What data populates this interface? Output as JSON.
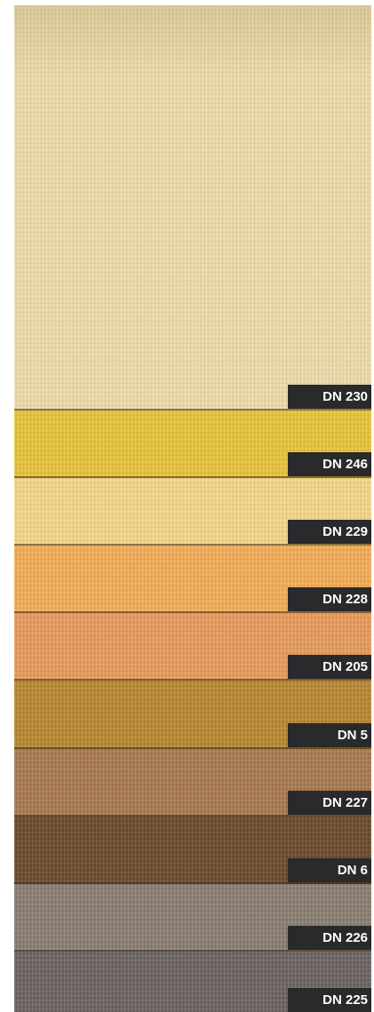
{
  "swatches": [
    {
      "code": "DN 230",
      "color": "#eeddab"
    },
    {
      "code": "DN 246",
      "color": "#e9c437"
    },
    {
      "code": "DN 229",
      "color": "#f6d787"
    },
    {
      "code": "DN 228",
      "color": "#f4ac57"
    },
    {
      "code": "DN 205",
      "color": "#e89a5b"
    },
    {
      "code": "DN 5",
      "color": "#b7882f"
    },
    {
      "code": "DN 227",
      "color": "#a8784f"
    },
    {
      "code": "DN 6",
      "color": "#6a4a2b"
    },
    {
      "code": "DN 226",
      "color": "#8a7d71"
    },
    {
      "code": "DN 225",
      "color": "#6b6260"
    }
  ]
}
